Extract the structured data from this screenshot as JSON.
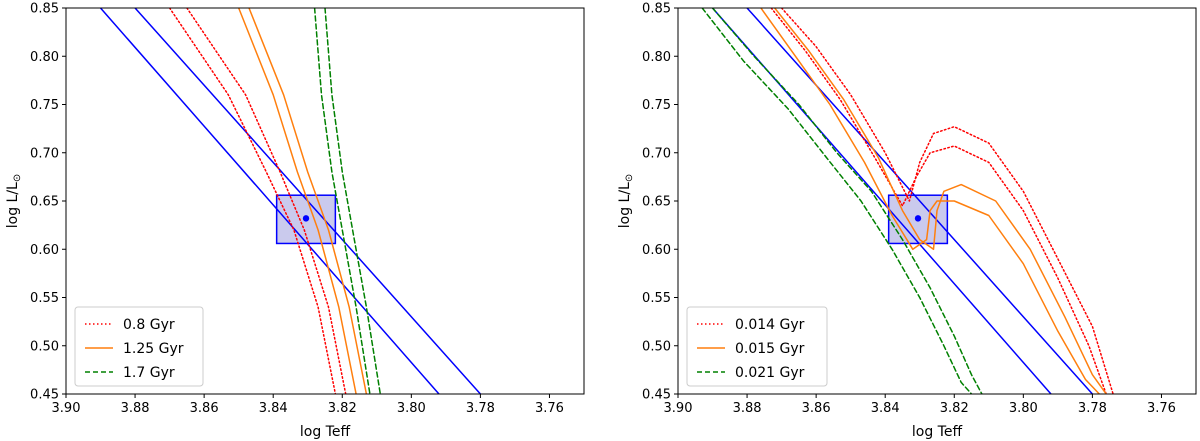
{
  "chart_data": [
    {
      "type": "line",
      "panel": "left",
      "xlabel": "log Teff",
      "ylabel_main": "log L/L",
      "ylabel_sub": "⊙",
      "xlim": [
        3.9,
        3.75
      ],
      "ylim": [
        0.45,
        0.85
      ],
      "x_ticks": [
        3.9,
        3.88,
        3.86,
        3.84,
        3.82,
        3.8,
        3.78,
        3.76
      ],
      "x_tick_labels": [
        "3.90",
        "3.88",
        "3.86",
        "3.84",
        "3.82",
        "3.80",
        "3.78",
        "3.76"
      ],
      "y_ticks": [
        0.45,
        0.5,
        0.55,
        0.6,
        0.65,
        0.7,
        0.75,
        0.8,
        0.85
      ],
      "y_tick_labels": [
        "0.45",
        "0.50",
        "0.55",
        "0.60",
        "0.65",
        "0.70",
        "0.75",
        "0.80",
        "0.85"
      ],
      "legend_position": "lower-left",
      "legend": [
        "0.8 Gyr",
        "1.25 Gyr",
        "1.7 Gyr"
      ],
      "series": [
        {
          "name": "0.8 Gyr",
          "color": "#ff0000",
          "style": "dotted",
          "x": [
            3.87,
            3.853,
            3.842,
            3.834,
            3.827,
            3.822
          ],
          "y": [
            0.85,
            0.76,
            0.68,
            0.62,
            0.54,
            0.45
          ]
        },
        {
          "name": "0.8 Gyr",
          "color": "#ff0000",
          "style": "dotted",
          "x": [
            3.865,
            3.848,
            3.838,
            3.831,
            3.824,
            3.819
          ],
          "y": [
            0.85,
            0.76,
            0.68,
            0.62,
            0.54,
            0.45
          ]
        },
        {
          "name": "1.25 Gyr",
          "color": "#ff7f0e",
          "style": "solid",
          "x": [
            3.85,
            3.84,
            3.833,
            3.827,
            3.821,
            3.816
          ],
          "y": [
            0.85,
            0.76,
            0.68,
            0.62,
            0.54,
            0.45
          ]
        },
        {
          "name": "1.25 Gyr",
          "color": "#ff7f0e",
          "style": "solid",
          "x": [
            3.847,
            3.837,
            3.83,
            3.824,
            3.818,
            3.813
          ],
          "y": [
            0.85,
            0.76,
            0.68,
            0.62,
            0.54,
            0.45
          ]
        },
        {
          "name": "1.7 Gyr",
          "color": "#008000",
          "style": "dashed",
          "x": [
            3.828,
            3.826,
            3.823,
            3.82,
            3.816,
            3.812
          ],
          "y": [
            0.85,
            0.76,
            0.68,
            0.62,
            0.54,
            0.45
          ]
        },
        {
          "name": "1.7 Gyr",
          "color": "#008000",
          "style": "dashed",
          "x": [
            3.825,
            3.823,
            3.82,
            3.817,
            3.813,
            3.809
          ],
          "y": [
            0.85,
            0.76,
            0.68,
            0.62,
            0.54,
            0.45
          ]
        }
      ],
      "lines": [
        {
          "color": "#0000ff",
          "x": [
            3.89,
            3.792
          ],
          "y": [
            0.85,
            0.45
          ]
        },
        {
          "color": "#0000ff",
          "x": [
            3.88,
            3.78
          ],
          "y": [
            0.85,
            0.45
          ]
        }
      ],
      "box": {
        "x": [
          3.839,
          3.822
        ],
        "y": [
          0.606,
          0.656
        ],
        "fill": "#b3b3e6",
        "stroke": "#0000ff"
      },
      "point": {
        "x": 3.8305,
        "y": 0.632,
        "color": "#0000ff"
      }
    },
    {
      "type": "line",
      "panel": "right",
      "xlabel": "log Teff",
      "ylabel_main": "log L/L",
      "ylabel_sub": "⊙",
      "xlim": [
        3.9,
        3.75
      ],
      "ylim": [
        0.45,
        0.85
      ],
      "x_ticks": [
        3.9,
        3.88,
        3.86,
        3.84,
        3.82,
        3.8,
        3.78,
        3.76
      ],
      "x_tick_labels": [
        "3.90",
        "3.88",
        "3.86",
        "3.84",
        "3.82",
        "3.80",
        "3.78",
        "3.76"
      ],
      "y_ticks": [
        0.45,
        0.5,
        0.55,
        0.6,
        0.65,
        0.7,
        0.75,
        0.8,
        0.85
      ],
      "y_tick_labels": [
        "0.45",
        "0.50",
        "0.55",
        "0.60",
        "0.65",
        "0.70",
        "0.75",
        "0.80",
        "0.85"
      ],
      "legend_position": "lower-left",
      "legend": [
        "0.014 Gyr",
        "0.015 Gyr",
        "0.021 Gyr"
      ],
      "series": [
        {
          "name": "0.014 Gyr",
          "color": "#ff0000",
          "style": "dotted",
          "x": [
            3.87,
            3.86,
            3.85,
            3.84,
            3.833,
            3.83,
            3.826,
            3.82,
            3.81,
            3.8,
            3.79,
            3.78,
            3.774
          ],
          "y": [
            0.85,
            0.81,
            0.76,
            0.7,
            0.65,
            0.69,
            0.72,
            0.727,
            0.71,
            0.66,
            0.59,
            0.52,
            0.45
          ]
        },
        {
          "name": "0.014 Gyr",
          "color": "#ff0000",
          "style": "dotted",
          "x": [
            3.873,
            3.863,
            3.853,
            3.843,
            3.835,
            3.831,
            3.827,
            3.82,
            3.81,
            3.8,
            3.79,
            3.781,
            3.776
          ],
          "y": [
            0.85,
            0.805,
            0.755,
            0.695,
            0.645,
            0.675,
            0.7,
            0.707,
            0.69,
            0.64,
            0.57,
            0.5,
            0.45
          ]
        },
        {
          "name": "0.015 Gyr",
          "color": "#ff7f0e",
          "style": "solid",
          "x": [
            3.872,
            3.862,
            3.852,
            3.842,
            3.835,
            3.83,
            3.826,
            3.825,
            3.823,
            3.818,
            3.808,
            3.798,
            3.788,
            3.78,
            3.776
          ],
          "y": [
            0.85,
            0.805,
            0.755,
            0.695,
            0.64,
            0.61,
            0.6,
            0.64,
            0.66,
            0.667,
            0.65,
            0.6,
            0.53,
            0.47,
            0.45
          ]
        },
        {
          "name": "0.015 Gyr",
          "color": "#ff7f0e",
          "style": "solid",
          "x": [
            3.876,
            3.866,
            3.856,
            3.846,
            3.838,
            3.832,
            3.828,
            3.827,
            3.825,
            3.82,
            3.81,
            3.8,
            3.79,
            3.782,
            3.778
          ],
          "y": [
            0.85,
            0.8,
            0.75,
            0.69,
            0.635,
            0.6,
            0.61,
            0.64,
            0.65,
            0.65,
            0.635,
            0.585,
            0.515,
            0.465,
            0.45
          ]
        },
        {
          "name": "0.021 Gyr",
          "color": "#008000",
          "style": "dashed",
          "x": [
            3.89,
            3.878,
            3.865,
            3.854,
            3.844,
            3.835,
            3.827,
            3.82,
            3.815,
            3.812
          ],
          "y": [
            0.85,
            0.8,
            0.75,
            0.7,
            0.66,
            0.61,
            0.56,
            0.51,
            0.47,
            0.45
          ]
        },
        {
          "name": "0.021 Gyr",
          "color": "#008000",
          "style": "dashed",
          "x": [
            3.893,
            3.881,
            3.868,
            3.857,
            3.847,
            3.838,
            3.83,
            3.823,
            3.818,
            3.815
          ],
          "y": [
            0.85,
            0.795,
            0.745,
            0.695,
            0.65,
            0.6,
            0.55,
            0.5,
            0.462,
            0.45
          ]
        }
      ],
      "lines": [
        {
          "color": "#0000ff",
          "x": [
            3.89,
            3.792
          ],
          "y": [
            0.85,
            0.45
          ]
        },
        {
          "color": "#0000ff",
          "x": [
            3.88,
            3.78
          ],
          "y": [
            0.85,
            0.45
          ]
        }
      ],
      "box": {
        "x": [
          3.839,
          3.822
        ],
        "y": [
          0.606,
          0.656
        ],
        "fill": "#b3b3e6",
        "stroke": "#0000ff"
      },
      "point": {
        "x": 3.8305,
        "y": 0.632,
        "color": "#0000ff"
      }
    }
  ]
}
